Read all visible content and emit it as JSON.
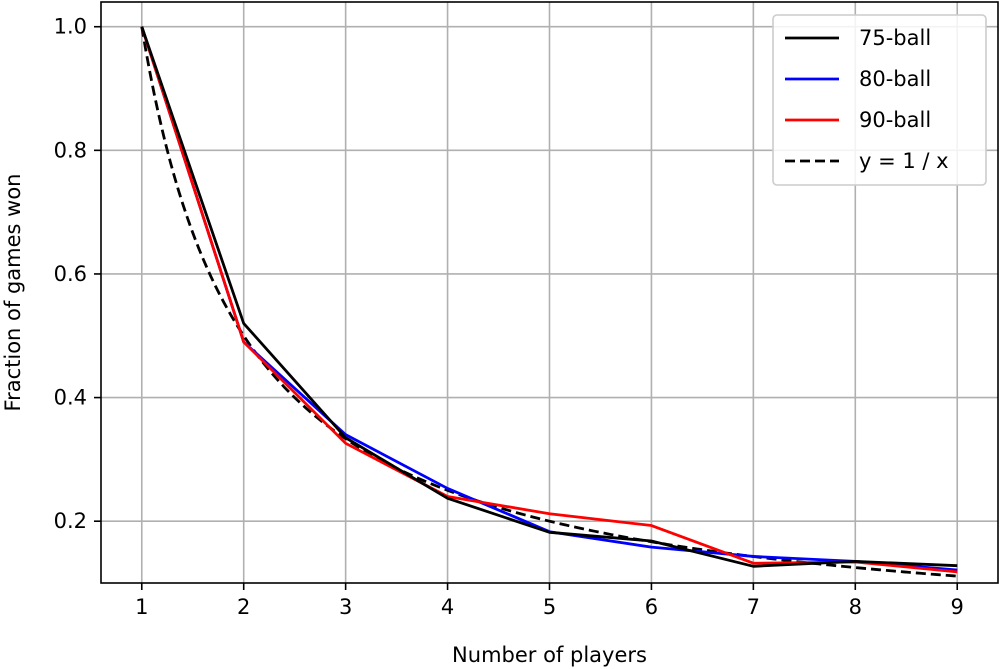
{
  "chart_data": {
    "type": "line",
    "title": "",
    "xlabel": "Number of players",
    "ylabel": "Fraction of games won",
    "xlim": [
      0.6,
      9.4
    ],
    "ylim": [
      0.1,
      1.04
    ],
    "x_ticks": [
      1,
      2,
      3,
      4,
      5,
      6,
      7,
      8,
      9
    ],
    "x_tick_labels": [
      "1",
      "2",
      "3",
      "4",
      "5",
      "6",
      "7",
      "8",
      "9"
    ],
    "y_ticks": [
      0.2,
      0.4,
      0.6,
      0.8,
      1.0
    ],
    "y_tick_labels": [
      "0.2",
      "0.4",
      "0.6",
      "0.8",
      "1.0"
    ],
    "grid": true,
    "legend_position": "top-right",
    "series": [
      {
        "name": "75-ball",
        "color": "#000000",
        "dash": "solid",
        "x": [
          1,
          2,
          3,
          4,
          5,
          6,
          7,
          8,
          9
        ],
        "y": [
          1.0,
          0.52,
          0.335,
          0.237,
          0.182,
          0.168,
          0.127,
          0.135,
          0.128
        ]
      },
      {
        "name": "80-ball",
        "color": "#0000ff",
        "dash": "solid",
        "x": [
          1,
          2,
          3,
          4,
          5,
          6,
          7,
          8,
          9
        ],
        "y": [
          1.0,
          0.49,
          0.34,
          0.253,
          0.183,
          0.158,
          0.143,
          0.135,
          0.121
        ]
      },
      {
        "name": "90-ball",
        "color": "#ff0000",
        "dash": "solid",
        "x": [
          1,
          2,
          3,
          4,
          5,
          6,
          7,
          8,
          9
        ],
        "y": [
          1.0,
          0.49,
          0.326,
          0.24,
          0.212,
          0.193,
          0.132,
          0.134,
          0.118
        ]
      },
      {
        "name": "y = 1 / x",
        "color": "#000000",
        "dash": "dashed",
        "function": "1/x",
        "x": [
          1,
          9
        ]
      }
    ]
  }
}
